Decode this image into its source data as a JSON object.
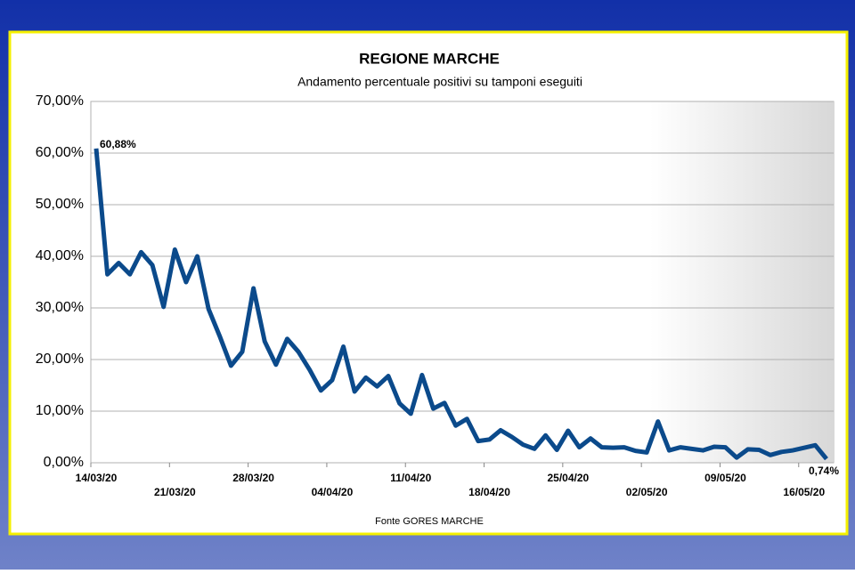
{
  "chart_data": {
    "type": "line",
    "title": "REGIONE MARCHE",
    "subtitle": "Andamento percentuale positivi su tamponi eseguiti",
    "footer": "Fonte GORES MARCHE",
    "categories": [
      "14/03/20",
      null,
      null,
      null,
      null,
      null,
      null,
      "21/03/20",
      null,
      null,
      null,
      null,
      null,
      null,
      "28/03/20",
      null,
      null,
      null,
      null,
      null,
      null,
      "04/04/20",
      null,
      null,
      null,
      null,
      null,
      null,
      "11/04/20",
      null,
      null,
      null,
      null,
      null,
      null,
      "18/04/20",
      null,
      null,
      null,
      null,
      null,
      null,
      "25/04/20",
      null,
      null,
      null,
      null,
      null,
      null,
      "02/05/20",
      null,
      null,
      null,
      null,
      null,
      null,
      "09/05/20",
      null,
      null,
      null,
      null,
      null,
      null,
      "16/05/20",
      null,
      null
    ],
    "series": [
      {
        "name": "Positivi su tamponi",
        "color": "#0b4a8b",
        "values": [
          60.88,
          36.5,
          38.7,
          36.5,
          40.8,
          38.3,
          30.2,
          41.3,
          35,
          40,
          29.8,
          24.5,
          18.8,
          21.5,
          33.8,
          23.5,
          19,
          24,
          21.5,
          18,
          14,
          16,
          22.5,
          13.8,
          16.5,
          14.8,
          16.8,
          11.5,
          9.5,
          17,
          10.5,
          11.6,
          7.2,
          8.5,
          4.2,
          4.5,
          6.3,
          5,
          3.5,
          2.7,
          5.3,
          2.5,
          6.2,
          3,
          4.7,
          3,
          2.9,
          3,
          2.3,
          2,
          8,
          2.4,
          3,
          2.7,
          2.4,
          3.1,
          3,
          1,
          2.6,
          2.5,
          1.5,
          2.1,
          2.4,
          2.9,
          3.4,
          0.74
        ],
        "value_labels": [
          "60,88%",
          null,
          null,
          null,
          null,
          null,
          null,
          null,
          null,
          null,
          null,
          null,
          null,
          null,
          null,
          null,
          null,
          null,
          null,
          null,
          null,
          null,
          null,
          null,
          null,
          null,
          null,
          null,
          null,
          null,
          null,
          null,
          null,
          null,
          null,
          null,
          null,
          null,
          null,
          null,
          null,
          null,
          null,
          null,
          null,
          null,
          null,
          null,
          null,
          null,
          null,
          null,
          null,
          null,
          null,
          null,
          null,
          null,
          null,
          null,
          null,
          null,
          null,
          null,
          null,
          "0,74%"
        ]
      }
    ],
    "ylim": [
      0,
      70
    ],
    "yticks": [
      {
        "value": 0,
        "label": "0,00%"
      },
      {
        "value": 10,
        "label": "10,00%"
      },
      {
        "value": 20,
        "label": "20,00%"
      },
      {
        "value": 30,
        "label": "30,00%"
      },
      {
        "value": 40,
        "label": "40,00%"
      },
      {
        "value": 50,
        "label": "50,00%"
      },
      {
        "value": 60,
        "label": "60,00%"
      },
      {
        "value": 70,
        "label": "70,00%"
      }
    ],
    "grid": true
  }
}
